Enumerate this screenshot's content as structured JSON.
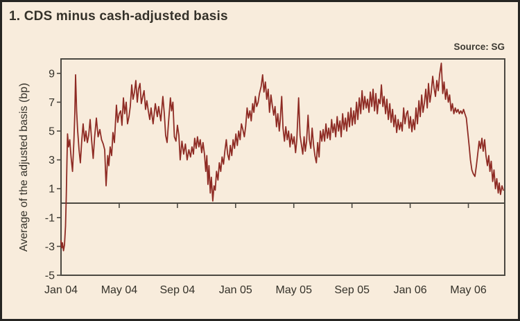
{
  "title": "1. CDS minus cash-adjusted basis",
  "source": "Source: SG",
  "chart_data": {
    "type": "line",
    "title": "1. CDS minus cash-adjusted basis",
    "source": "Source: SG",
    "series_name": "CDS minus cash-adjusted basis",
    "xlabel": "",
    "ylabel": "Average of the adjusted basis (bp)",
    "x_unit": "months since Jan 2004",
    "x_range": [
      0,
      30.5
    ],
    "ylim": [
      -5,
      10
    ],
    "y_ticks": [
      9,
      7,
      5,
      3,
      1,
      -1,
      -3,
      -5
    ],
    "x_tick_months": [
      0,
      4,
      8,
      12,
      16,
      20,
      24,
      28
    ],
    "x_tick_labels": [
      "Jan 04",
      "May 04",
      "Sep 04",
      "Jan 05",
      "May 05",
      "Sep 05",
      "Jan 06",
      "May 06"
    ],
    "grid": false,
    "legend": null,
    "line_color": "#8e2b24",
    "axis_color": "#4b4841",
    "points": [
      [
        0.0,
        -2.6
      ],
      [
        0.05,
        -3.1
      ],
      [
        0.1,
        -2.75
      ],
      [
        0.17,
        -3.3
      ],
      [
        0.24,
        -2.9
      ],
      [
        0.31,
        -1.6
      ],
      [
        0.36,
        0.5
      ],
      [
        0.41,
        3.0
      ],
      [
        0.45,
        4.8
      ],
      [
        0.52,
        3.9
      ],
      [
        0.6,
        4.4
      ],
      [
        0.69,
        3.2
      ],
      [
        0.79,
        2.2
      ],
      [
        0.88,
        4.2
      ],
      [
        0.95,
        6.2
      ],
      [
        1.0,
        8.9
      ],
      [
        1.07,
        6.4
      ],
      [
        1.14,
        5.1
      ],
      [
        1.24,
        3.7
      ],
      [
        1.33,
        2.8
      ],
      [
        1.43,
        4.4
      ],
      [
        1.52,
        5.5
      ],
      [
        1.62,
        4.3
      ],
      [
        1.71,
        5.0
      ],
      [
        1.81,
        4.2
      ],
      [
        1.9,
        4.7
      ],
      [
        2.0,
        5.8
      ],
      [
        2.1,
        4.4
      ],
      [
        2.21,
        3.1
      ],
      [
        2.31,
        4.6
      ],
      [
        2.43,
        5.9
      ],
      [
        2.55,
        4.6
      ],
      [
        2.67,
        5.1
      ],
      [
        2.79,
        4.4
      ],
      [
        2.9,
        4.1
      ],
      [
        3.0,
        3.7
      ],
      [
        3.1,
        1.2
      ],
      [
        3.21,
        3.3
      ],
      [
        3.29,
        2.6
      ],
      [
        3.38,
        3.9
      ],
      [
        3.48,
        3.3
      ],
      [
        3.57,
        4.9
      ],
      [
        3.67,
        4.2
      ],
      [
        3.81,
        6.8
      ],
      [
        3.9,
        5.6
      ],
      [
        4.0,
        6.2
      ],
      [
        4.1,
        6.4
      ],
      [
        4.19,
        5.4
      ],
      [
        4.29,
        7.3
      ],
      [
        4.38,
        6.2
      ],
      [
        4.48,
        7.0
      ],
      [
        4.57,
        5.5
      ],
      [
        4.67,
        6.0
      ],
      [
        4.76,
        6.7
      ],
      [
        4.86,
        8.2
      ],
      [
        4.95,
        7.2
      ],
      [
        5.05,
        7.7
      ],
      [
        5.14,
        8.5
      ],
      [
        5.24,
        7.0
      ],
      [
        5.33,
        7.9
      ],
      [
        5.43,
        8.3
      ],
      [
        5.52,
        6.9
      ],
      [
        5.62,
        7.4
      ],
      [
        5.71,
        7.8
      ],
      [
        5.81,
        6.5
      ],
      [
        5.9,
        7.1
      ],
      [
        6.0,
        6.4
      ],
      [
        6.1,
        5.8
      ],
      [
        6.19,
        6.6
      ],
      [
        6.33,
        5.5
      ],
      [
        6.48,
        6.9
      ],
      [
        6.62,
        6.0
      ],
      [
        6.71,
        6.7
      ],
      [
        6.86,
        5.7
      ],
      [
        7.0,
        7.4
      ],
      [
        7.1,
        6.2
      ],
      [
        7.19,
        4.7
      ],
      [
        7.29,
        4.2
      ],
      [
        7.38,
        5.5
      ],
      [
        7.52,
        7.3
      ],
      [
        7.6,
        6.4
      ],
      [
        7.69,
        7.0
      ],
      [
        7.79,
        4.6
      ],
      [
        7.9,
        4.3
      ],
      [
        8.0,
        5.4
      ],
      [
        8.1,
        4.7
      ],
      [
        8.19,
        3.0
      ],
      [
        8.31,
        4.3
      ],
      [
        8.43,
        3.4
      ],
      [
        8.55,
        4.1
      ],
      [
        8.67,
        3.0
      ],
      [
        8.79,
        3.7
      ],
      [
        8.9,
        3.2
      ],
      [
        9.0,
        3.9
      ],
      [
        9.1,
        3.4
      ],
      [
        9.19,
        4.5
      ],
      [
        9.29,
        3.8
      ],
      [
        9.38,
        4.6
      ],
      [
        9.48,
        3.9
      ],
      [
        9.57,
        4.4
      ],
      [
        9.67,
        3.5
      ],
      [
        9.76,
        4.2
      ],
      [
        9.86,
        3.4
      ],
      [
        9.95,
        2.2
      ],
      [
        10.02,
        3.3
      ],
      [
        10.1,
        1.3
      ],
      [
        10.17,
        2.6
      ],
      [
        10.26,
        0.7
      ],
      [
        10.33,
        1.8
      ],
      [
        10.43,
        0.15
      ],
      [
        10.52,
        1.2
      ],
      [
        10.6,
        0.9
      ],
      [
        10.69,
        2.2
      ],
      [
        10.79,
        1.6
      ],
      [
        10.88,
        2.8
      ],
      [
        10.98,
        2.2
      ],
      [
        11.07,
        3.2
      ],
      [
        11.17,
        2.7
      ],
      [
        11.26,
        3.6
      ],
      [
        11.36,
        4.4
      ],
      [
        11.45,
        3.4
      ],
      [
        11.55,
        3.0
      ],
      [
        11.64,
        4.0
      ],
      [
        11.74,
        3.3
      ],
      [
        11.83,
        4.4
      ],
      [
        11.93,
        3.8
      ],
      [
        12.02,
        4.8
      ],
      [
        12.12,
        4.0
      ],
      [
        12.21,
        5.0
      ],
      [
        12.31,
        4.4
      ],
      [
        12.4,
        5.5
      ],
      [
        12.5,
        5.1
      ],
      [
        12.6,
        4.6
      ],
      [
        12.69,
        5.3
      ],
      [
        12.79,
        6.6
      ],
      [
        12.88,
        5.9
      ],
      [
        12.98,
        6.4
      ],
      [
        13.07,
        5.7
      ],
      [
        13.17,
        6.9
      ],
      [
        13.26,
        6.3
      ],
      [
        13.36,
        7.4
      ],
      [
        13.45,
        6.7
      ],
      [
        13.55,
        7.0
      ],
      [
        13.64,
        7.6
      ],
      [
        13.76,
        8.1
      ],
      [
        13.86,
        8.9
      ],
      [
        13.95,
        7.7
      ],
      [
        14.05,
        8.4
      ],
      [
        14.14,
        7.2
      ],
      [
        14.24,
        7.9
      ],
      [
        14.33,
        6.3
      ],
      [
        14.43,
        7.5
      ],
      [
        14.52,
        6.8
      ],
      [
        14.62,
        6.1
      ],
      [
        14.71,
        6.7
      ],
      [
        14.81,
        5.3
      ],
      [
        14.9,
        6.2
      ],
      [
        15.0,
        5.0
      ],
      [
        15.07,
        5.8
      ],
      [
        15.17,
        7.4
      ],
      [
        15.26,
        5.2
      ],
      [
        15.36,
        4.3
      ],
      [
        15.45,
        5.3
      ],
      [
        15.55,
        4.4
      ],
      [
        15.64,
        5.0
      ],
      [
        15.74,
        3.9
      ],
      [
        15.83,
        4.8
      ],
      [
        15.93,
        4.1
      ],
      [
        16.02,
        4.6
      ],
      [
        16.12,
        3.5
      ],
      [
        16.21,
        4.4
      ],
      [
        16.33,
        7.3
      ],
      [
        16.43,
        4.7
      ],
      [
        16.52,
        4.1
      ],
      [
        16.62,
        3.4
      ],
      [
        16.71,
        4.6
      ],
      [
        16.79,
        3.6
      ],
      [
        16.88,
        4.3
      ],
      [
        16.98,
        6.1
      ],
      [
        17.07,
        4.4
      ],
      [
        17.17,
        3.8
      ],
      [
        17.26,
        5.2
      ],
      [
        17.36,
        4.0
      ],
      [
        17.45,
        3.3
      ],
      [
        17.55,
        2.8
      ],
      [
        17.64,
        4.2
      ],
      [
        17.74,
        3.2
      ],
      [
        17.83,
        5.0
      ],
      [
        17.93,
        4.3
      ],
      [
        18.02,
        5.1
      ],
      [
        18.12,
        4.3
      ],
      [
        18.21,
        5.5
      ],
      [
        18.31,
        4.5
      ],
      [
        18.4,
        5.2
      ],
      [
        18.5,
        4.4
      ],
      [
        18.6,
        5.8
      ],
      [
        18.69,
        4.9
      ],
      [
        18.79,
        5.5
      ],
      [
        18.88,
        4.6
      ],
      [
        18.98,
        6.0
      ],
      [
        19.07,
        5.0
      ],
      [
        19.17,
        5.7
      ],
      [
        19.26,
        4.6
      ],
      [
        19.36,
        6.2
      ],
      [
        19.45,
        5.1
      ],
      [
        19.55,
        5.9
      ],
      [
        19.64,
        5.0
      ],
      [
        19.74,
        6.3
      ],
      [
        19.83,
        5.3
      ],
      [
        19.93,
        6.6
      ],
      [
        20.02,
        5.4
      ],
      [
        20.12,
        6.4
      ],
      [
        20.21,
        5.5
      ],
      [
        20.31,
        7.0
      ],
      [
        20.4,
        5.8
      ],
      [
        20.5,
        7.3
      ],
      [
        20.6,
        6.2
      ],
      [
        20.69,
        7.8
      ],
      [
        20.79,
        6.5
      ],
      [
        20.88,
        7.4
      ],
      [
        20.98,
        6.6
      ],
      [
        21.07,
        7.2
      ],
      [
        21.17,
        6.3
      ],
      [
        21.26,
        7.7
      ],
      [
        21.36,
        6.7
      ],
      [
        21.45,
        7.9
      ],
      [
        21.55,
        6.4
      ],
      [
        21.64,
        7.6
      ],
      [
        21.74,
        6.2
      ],
      [
        21.83,
        7.2
      ],
      [
        21.93,
        6.9
      ],
      [
        22.02,
        8.2
      ],
      [
        22.12,
        6.7
      ],
      [
        22.21,
        7.4
      ],
      [
        22.31,
        6.2
      ],
      [
        22.4,
        7.2
      ],
      [
        22.5,
        5.8
      ],
      [
        22.6,
        6.9
      ],
      [
        22.69,
        5.6
      ],
      [
        22.79,
        6.5
      ],
      [
        22.88,
        5.3
      ],
      [
        22.98,
        6.1
      ],
      [
        23.07,
        4.9
      ],
      [
        23.17,
        5.8
      ],
      [
        23.26,
        5.1
      ],
      [
        23.36,
        5.6
      ],
      [
        23.45,
        5.0
      ],
      [
        23.55,
        6.6
      ],
      [
        23.64,
        5.5
      ],
      [
        23.74,
        6.2
      ],
      [
        23.83,
        6.4
      ],
      [
        23.93,
        5.2
      ],
      [
        24.02,
        6.0
      ],
      [
        24.12,
        4.95
      ],
      [
        24.21,
        5.8
      ],
      [
        24.31,
        5.1
      ],
      [
        24.4,
        6.6
      ],
      [
        24.5,
        5.5
      ],
      [
        24.6,
        7.1
      ],
      [
        24.69,
        6.0
      ],
      [
        24.79,
        7.5
      ],
      [
        24.88,
        6.3
      ],
      [
        24.98,
        7.0
      ],
      [
        25.07,
        7.9
      ],
      [
        25.17,
        6.6
      ],
      [
        25.26,
        8.3
      ],
      [
        25.36,
        7.0
      ],
      [
        25.45,
        7.7
      ],
      [
        25.55,
        8.8
      ],
      [
        25.64,
        8.0
      ],
      [
        25.74,
        7.4
      ],
      [
        25.83,
        8.5
      ],
      [
        25.93,
        7.8
      ],
      [
        26.02,
        8.9
      ],
      [
        26.14,
        9.7
      ],
      [
        26.24,
        7.6
      ],
      [
        26.33,
        8.4
      ],
      [
        26.43,
        7.2
      ],
      [
        26.52,
        7.9
      ],
      [
        26.62,
        7.0
      ],
      [
        26.71,
        7.5
      ],
      [
        26.81,
        6.4
      ],
      [
        26.9,
        6.9
      ],
      [
        27.0,
        6.2
      ],
      [
        27.1,
        6.6
      ],
      [
        27.19,
        6.3
      ],
      [
        27.29,
        6.5
      ],
      [
        27.38,
        6.2
      ],
      [
        27.48,
        6.4
      ],
      [
        27.57,
        6.2
      ],
      [
        27.67,
        6.5
      ],
      [
        27.76,
        6.2
      ],
      [
        27.86,
        5.9
      ],
      [
        27.95,
        5.0
      ],
      [
        28.05,
        4.0
      ],
      [
        28.14,
        3.0
      ],
      [
        28.24,
        2.3
      ],
      [
        28.33,
        2.05
      ],
      [
        28.45,
        1.85
      ],
      [
        28.55,
        2.6
      ],
      [
        28.64,
        3.4
      ],
      [
        28.74,
        4.3
      ],
      [
        28.83,
        3.8
      ],
      [
        28.93,
        4.5
      ],
      [
        29.02,
        3.6
      ],
      [
        29.12,
        4.4
      ],
      [
        29.21,
        3.3
      ],
      [
        29.31,
        2.6
      ],
      [
        29.4,
        3.3
      ],
      [
        29.48,
        2.2
      ],
      [
        29.57,
        2.9
      ],
      [
        29.67,
        1.5
      ],
      [
        29.76,
        2.3
      ],
      [
        29.86,
        1.0
      ],
      [
        29.95,
        1.7
      ],
      [
        30.05,
        0.7
      ],
      [
        30.12,
        1.4
      ],
      [
        30.21,
        0.6
      ],
      [
        30.31,
        1.2
      ],
      [
        30.4,
        0.9
      ]
    ]
  }
}
